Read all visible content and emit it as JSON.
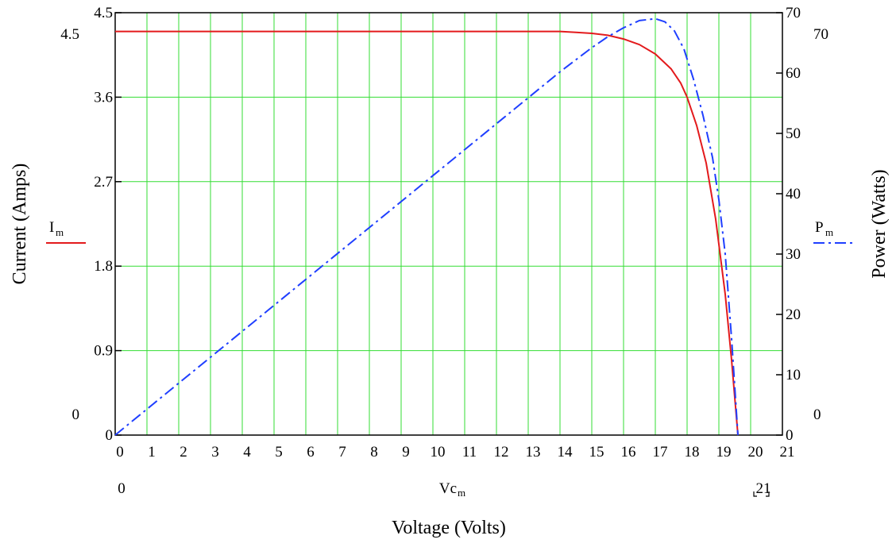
{
  "chart_data": {
    "type": "line",
    "xlabel": "Voltage (Volts)",
    "ylabel": "Current (Amps)",
    "y2label": "Power (Watts)",
    "xlim": [
      0,
      21
    ],
    "ylim": [
      0,
      4.5
    ],
    "y2lim": [
      0,
      70
    ],
    "grid": true,
    "x_ticks": [
      "0",
      "1",
      "2",
      "3",
      "4",
      "5",
      "6",
      "7",
      "8",
      "9",
      "10",
      "11",
      "12",
      "13",
      "14",
      "15",
      "16",
      "17",
      "18",
      "19",
      "20",
      "21"
    ],
    "y_ticks": [
      "0",
      "0.9",
      "1.8",
      "2.7",
      "3.6",
      "4.5"
    ],
    "y2_ticks": [
      "0",
      "10",
      "20",
      "30",
      "40",
      "50",
      "60",
      "70"
    ],
    "corner_labels": {
      "y_min": "0",
      "y_max": "4.5",
      "y2_min": "0",
      "y2_max": "70",
      "x_min": "0",
      "x_max": "21"
    },
    "x_var_label": {
      "main": "Vc",
      "sub": "m"
    },
    "series": [
      {
        "name": "I",
        "sub": "m",
        "axis": "left",
        "style": "solid",
        "color": "#e31a1c",
        "x": [
          0,
          14,
          14.5,
          15,
          15.5,
          16,
          16.5,
          17,
          17.5,
          17.8,
          18,
          18.3,
          18.6,
          18.9,
          19.2,
          19.4,
          19.6
        ],
        "y": [
          4.3,
          4.3,
          4.29,
          4.28,
          4.26,
          4.22,
          4.16,
          4.06,
          3.9,
          3.75,
          3.6,
          3.3,
          2.9,
          2.3,
          1.5,
          0.8,
          0
        ]
      },
      {
        "name": "P",
        "sub": "m",
        "axis": "right",
        "style": "dashdot",
        "color": "#1f3fff",
        "x": [
          0,
          2,
          4,
          6,
          8,
          10,
          12,
          14,
          15,
          15.5,
          16,
          16.5,
          17,
          17.3,
          17.6,
          17.9,
          18.2,
          18.5,
          18.8,
          19.0,
          19.2,
          19.4,
          19.6
        ],
        "y": [
          0,
          8.6,
          17.2,
          25.8,
          34.4,
          43.0,
          51.6,
          60.2,
          64.2,
          66.0,
          67.5,
          68.7,
          69.0,
          68.5,
          67.0,
          64.0,
          59.0,
          53.0,
          46.0,
          39.0,
          30.0,
          16.0,
          0
        ]
      }
    ]
  }
}
